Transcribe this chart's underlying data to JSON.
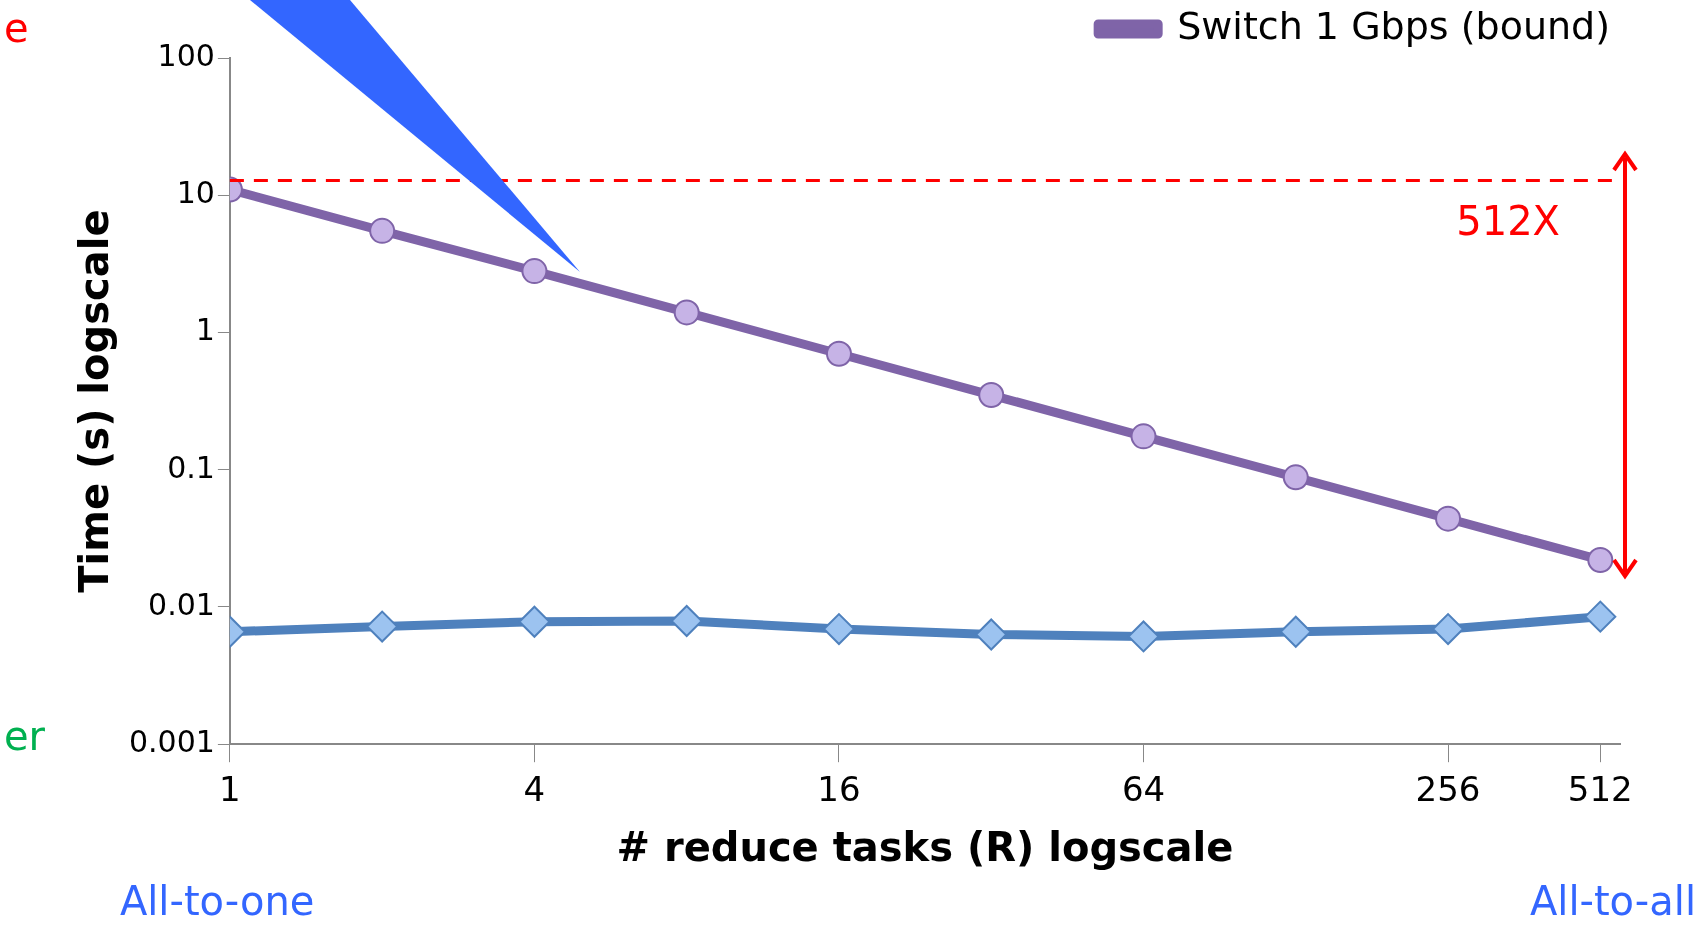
{
  "chart_data": {
    "type": "line",
    "xlabel": "# reduce tasks (R) logscale",
    "ylabel": "Time (s) logscale",
    "x": [
      1,
      2,
      4,
      8,
      16,
      32,
      64,
      128,
      256,
      512
    ],
    "series": [
      {
        "name": "Switch 1 Gbps (bound)",
        "color": "#7f64a8",
        "marker": "circle",
        "values": [
          11,
          5.5,
          2.8,
          1.4,
          0.7,
          0.35,
          0.175,
          0.088,
          0.044,
          0.022
        ]
      },
      {
        "color": "#4f81bd",
        "marker": "diamond",
        "values": [
          0.0066,
          0.0072,
          0.0078,
          0.0079,
          0.0069,
          0.0063,
          0.0061,
          0.0066,
          0.0069,
          0.0085
        ]
      }
    ],
    "log": "xy",
    "xlim": [
      1,
      560
    ],
    "xticks": [
      1,
      4,
      16,
      64,
      256,
      512
    ],
    "ylim": [
      0.001,
      100
    ],
    "yticks": [
      0.001,
      0.01,
      0.1,
      1,
      10,
      100
    ],
    "grid": false,
    "legend": "top",
    "line_style": "solid",
    "ref_lines": [
      {
        "axis": "y",
        "value": 12.8,
        "color": "#ff0000",
        "line_style": "dashed"
      }
    ],
    "annotations": [
      "512X",
      "All-to-one",
      "All-to-all",
      "e",
      "er"
    ]
  }
}
